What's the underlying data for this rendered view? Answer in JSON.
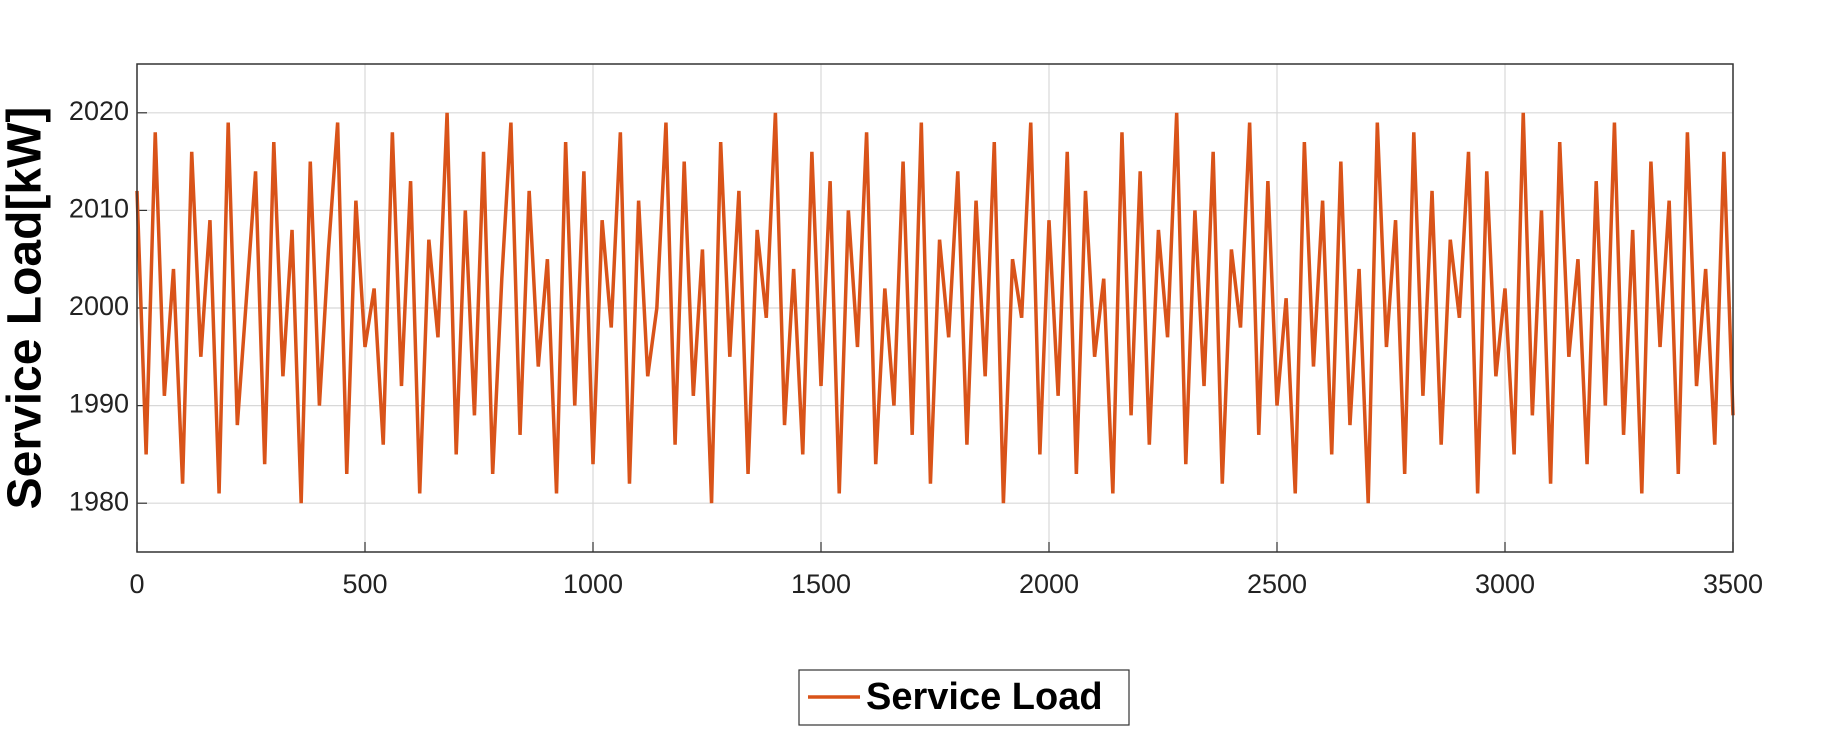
{
  "chart_data": {
    "type": "line",
    "ylabel": "Service Load[kW]",
    "xlim": [
      0,
      3500
    ],
    "xticks": [
      0,
      500,
      1000,
      1500,
      2000,
      2500,
      3000,
      3500
    ],
    "ylim": [
      1975,
      2025
    ],
    "yticks": [
      1980,
      1990,
      2000,
      2010,
      2020
    ],
    "grid": true,
    "legend": "bottom",
    "x": [
      0,
      20,
      40,
      60,
      80,
      100,
      120,
      140,
      160,
      180,
      200,
      220,
      240,
      260,
      280,
      300,
      320,
      340,
      360,
      380,
      400,
      420,
      440,
      460,
      480,
      500,
      520,
      540,
      560,
      580,
      600,
      620,
      640,
      660,
      680,
      700,
      720,
      740,
      760,
      780,
      800,
      820,
      840,
      860,
      880,
      900,
      920,
      940,
      960,
      980,
      1000,
      1020,
      1040,
      1060,
      1080,
      1100,
      1120,
      1140,
      1160,
      1180,
      1200,
      1220,
      1240,
      1260,
      1280,
      1300,
      1320,
      1340,
      1360,
      1380,
      1400,
      1420,
      1440,
      1460,
      1480,
      1500,
      1520,
      1540,
      1560,
      1580,
      1600,
      1620,
      1640,
      1660,
      1680,
      1700,
      1720,
      1740,
      1760,
      1780,
      1800,
      1820,
      1840,
      1860,
      1880,
      1900,
      1920,
      1940,
      1960,
      1980,
      2000,
      2020,
      2040,
      2060,
      2080,
      2100,
      2120,
      2140,
      2160,
      2180,
      2200,
      2220,
      2240,
      2260,
      2280,
      2300,
      2320,
      2340,
      2360,
      2380,
      2400,
      2420,
      2440,
      2460,
      2480,
      2500,
      2520,
      2540,
      2560,
      2580,
      2600,
      2620,
      2640,
      2660,
      2680,
      2700,
      2720,
      2740,
      2760,
      2780,
      2800,
      2820,
      2840,
      2860,
      2880,
      2900,
      2920,
      2940,
      2960,
      2980,
      3000,
      3020,
      3040,
      3060,
      3080,
      3100,
      3120,
      3140,
      3160,
      3180,
      3200,
      3220,
      3240,
      3260,
      3280,
      3300,
      3320,
      3340,
      3360,
      3380,
      3400,
      3420,
      3440,
      3460,
      3480,
      3500
    ],
    "series": [
      {
        "name": "Service Load",
        "color": "#D95319",
        "values": [
          2012,
          1985,
          2018,
          1991,
          2004,
          1982,
          2016,
          1995,
          2009,
          1981,
          2019,
          1988,
          2001,
          2014,
          1984,
          2017,
          1993,
          2008,
          1980,
          2015,
          1990,
          2006,
          2019,
          1983,
          2011,
          1996,
          2002,
          1986,
          2018,
          1992,
          2013,
          1981,
          2007,
          1997,
          2020,
          1985,
          2010,
          1989,
          2016,
          1983,
          2003,
          2019,
          1987,
          2012,
          1994,
          2005,
          1981,
          2017,
          1990,
          2014,
          1984,
          2009,
          1998,
          2018,
          1982,
          2011,
          1993,
          2000,
          2019,
          1986,
          2015,
          1991,
          2006,
          1980,
          2017,
          1995,
          2012,
          1983,
          2008,
          1999,
          2020,
          1988,
          2004,
          1985,
          2016,
          1992,
          2013,
          1981,
          2010,
          1996,
          2018,
          1984,
          2002,
          1990,
          2015,
          1987,
          2019,
          1982,
          2007,
          1997,
          2014,
          1986,
          2011,
          1993,
          2017,
          1980,
          2005,
          1999,
          2019,
          1985,
          2009,
          1991,
          2016,
          1983,
          2012,
          1995,
          2003,
          1981,
          2018,
          1989,
          2014,
          1986,
          2008,
          1997,
          2020,
          1984,
          2010,
          1992,
          2016,
          1982,
          2006,
          1998,
          2019,
          1987,
          2013,
          1990,
          2001,
          1981,
          2017,
          1994,
          2011,
          1985,
          2015,
          1988,
          2004,
          1980,
          2019,
          1996,
          2009,
          1983,
          2018,
          1991,
          2012,
          1986,
          2007,
          1999,
          2016,
          1981,
          2014,
          1993,
          2002,
          1985,
          2020,
          1989,
          2010,
          1982,
          2017,
          1995,
          2005,
          1984,
          2013,
          1990,
          2019,
          1987,
          2008,
          1981,
          2015,
          1996,
          2011,
          1983,
          2018,
          1992,
          2004,
          1986,
          2016,
          1989
        ]
      }
    ]
  }
}
